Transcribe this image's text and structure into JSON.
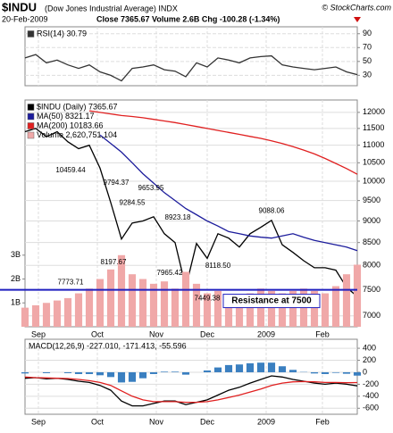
{
  "header": {
    "symbol": "$INDU",
    "name": "(Dow Jones Industrial Average) INDX",
    "date": "20-Feb-2009",
    "quote": "Close 7365.67 Volume 2.6B Chg -100.28 (-1.34%)",
    "credit": "© StockCharts.com"
  },
  "chart_data": [
    {
      "type": "line",
      "show_xtick_labels": false,
      "x": [
        0,
        4,
        8,
        12,
        16,
        20,
        24,
        28,
        32,
        36,
        40,
        44,
        48,
        52,
        56,
        60,
        64,
        68,
        72,
        76,
        80,
        84,
        88,
        92,
        96,
        100,
        104,
        108,
        112,
        116,
        120,
        124
      ],
      "xlim": [
        0,
        124
      ],
      "xticks": [
        {
          "value": 5,
          "label": "Sep"
        },
        {
          "value": 27,
          "label": "Oct"
        },
        {
          "value": 49,
          "label": "Nov"
        },
        {
          "value": 68,
          "label": "Dec"
        },
        {
          "value": 90,
          "label": "2009"
        },
        {
          "value": 111,
          "label": "Feb"
        }
      ],
      "ylim": [
        15,
        100
      ],
      "yticks": [
        30,
        50,
        70,
        90
      ],
      "grid": true,
      "series": [
        {
          "name": "RSI(14) 30.79",
          "color": "#333333",
          "values": [
            55,
            60,
            48,
            52,
            45,
            40,
            45,
            35,
            30,
            22,
            40,
            42,
            45,
            38,
            36,
            28,
            48,
            42,
            55,
            52,
            48,
            55,
            57,
            58,
            45,
            42,
            40,
            38,
            40,
            42,
            35,
            31
          ]
        }
      ]
    },
    {
      "type": "line",
      "log": true,
      "show_xtick_labels": true,
      "x": [
        0,
        4,
        8,
        12,
        16,
        20,
        24,
        28,
        32,
        36,
        40,
        44,
        48,
        52,
        56,
        60,
        64,
        68,
        72,
        76,
        80,
        84,
        88,
        92,
        96,
        100,
        104,
        108,
        112,
        116,
        120,
        124
      ],
      "xlim": [
        0,
        124
      ],
      "xticks": [
        {
          "value": 5,
          "label": "Sep"
        },
        {
          "value": 27,
          "label": "Oct"
        },
        {
          "value": 49,
          "label": "Nov"
        },
        {
          "value": 68,
          "label": "Dec"
        },
        {
          "value": 90,
          "label": "2009"
        },
        {
          "value": 111,
          "label": "Feb"
        }
      ],
      "ylim": [
        6800,
        12400
      ],
      "yticks": [
        7000,
        7500,
        8000,
        8500,
        9000,
        9500,
        10000,
        10500,
        11000,
        11500,
        12000
      ],
      "grid": true,
      "y2lim": [
        0,
        9.5
      ],
      "y2ticks": [
        {
          "value": 1,
          "label": "1B"
        },
        {
          "value": 2,
          "label": "2B"
        },
        {
          "value": 3,
          "label": "3B"
        }
      ],
      "series": [
        {
          "name": "$INDU (Daily) 7365.67",
          "color": "#000000",
          "values": [
            11400,
            11500,
            11250,
            11400,
            11100,
            10900,
            11000,
            10350,
            9450,
            8580,
            8950,
            9000,
            9100,
            8700,
            8500,
            7550,
            8480,
            8150,
            8700,
            8600,
            8400,
            8700,
            8850,
            9015,
            8450,
            8280,
            8100,
            7950,
            7950,
            7900,
            7550,
            7366
          ]
        },
        {
          "name": "MA(50) 8321.17",
          "color": "#1c1c9c",
          "values": [
            null,
            null,
            null,
            null,
            null,
            null,
            null,
            11300,
            11050,
            10800,
            10500,
            10200,
            9950,
            9700,
            9500,
            9300,
            9150,
            9000,
            8880,
            8750,
            8700,
            8650,
            8620,
            8600,
            8650,
            8700,
            8620,
            8550,
            8500,
            8450,
            8400,
            8321
          ]
        },
        {
          "name": "MA(200) 10183.66",
          "color": "#e02020",
          "values": [
            null,
            null,
            null,
            null,
            null,
            null,
            12050,
            12000,
            11950,
            11900,
            11870,
            11830,
            11780,
            11730,
            11680,
            11620,
            11560,
            11500,
            11440,
            11380,
            11320,
            11260,
            11200,
            11130,
            11050,
            10960,
            10860,
            10750,
            10620,
            10480,
            10340,
            10184
          ]
        },
        {
          "name": "Volume 2,620,751,104",
          "color": "#f0a8a8",
          "type": "bar",
          "axis": "y2",
          "values": [
            0.8,
            0.9,
            1.0,
            1.1,
            1.2,
            1.4,
            1.6,
            2.0,
            2.4,
            3.0,
            2.2,
            2.0,
            1.8,
            1.9,
            1.6,
            2.3,
            1.8,
            1.4,
            1.5,
            1.3,
            1.1,
            1.4,
            1.6,
            1.5,
            1.4,
            1.5,
            1.6,
            1.5,
            1.4,
            1.7,
            2.2,
            2.6
          ]
        }
      ],
      "hlines": [
        {
          "value": 7500,
          "label": "Resistance at 7500",
          "color": "#1f1fbf"
        }
      ],
      "annotations": [
        {
          "x": 17,
          "value": 10459.44,
          "label": "10459.44"
        },
        {
          "x": 34,
          "value": 9794.37,
          "label": "9794.37"
        },
        {
          "x": 40,
          "value": 9284.55,
          "label": "9284.55"
        },
        {
          "x": 47,
          "value": 9653.95,
          "label": "9653.95"
        },
        {
          "x": 57,
          "value": 8923.18,
          "label": "8923.18"
        },
        {
          "x": 33,
          "value": 8197.67,
          "label": "8197.67"
        },
        {
          "x": 17,
          "value": 7773.71,
          "label": "7773.71"
        },
        {
          "x": 54,
          "value": 7965.42,
          "label": "7965.42"
        },
        {
          "x": 72,
          "value": 8118.5,
          "label": "8118.50"
        },
        {
          "x": 68,
          "value": 7449.38,
          "label": "7449.38"
        },
        {
          "x": 92,
          "value": 9088.06,
          "label": "9088.06"
        }
      ]
    },
    {
      "type": "line",
      "show_xtick_labels": true,
      "title": "MACD(12,26,9) -227.010, -171.413, -55.596",
      "x": [
        0,
        4,
        8,
        12,
        16,
        20,
        24,
        28,
        32,
        36,
        40,
        44,
        48,
        52,
        56,
        60,
        64,
        68,
        72,
        76,
        80,
        84,
        88,
        92,
        96,
        100,
        104,
        108,
        112,
        116,
        120,
        124
      ],
      "xlim": [
        0,
        124
      ],
      "xticks": [
        {
          "value": 5,
          "label": "Sep"
        },
        {
          "value": 27,
          "label": "Oct"
        },
        {
          "value": 49,
          "label": "Nov"
        },
        {
          "value": 68,
          "label": "Dec"
        },
        {
          "value": 90,
          "label": "2009"
        },
        {
          "value": 111,
          "label": "Feb"
        }
      ],
      "ylim": [
        -700,
        550
      ],
      "yticks": [
        -600,
        -400,
        -200,
        0,
        200,
        400
      ],
      "grid": true,
      "series": [
        {
          "color": "#3a7fc0",
          "type": "bar",
          "values": [
            -20,
            0,
            -15,
            0,
            -15,
            -30,
            -30,
            -50,
            -80,
            -170,
            -160,
            -100,
            -30,
            10,
            10,
            -40,
            0,
            30,
            80,
            120,
            130,
            150,
            160,
            160,
            100,
            40,
            5,
            -20,
            -30,
            -10,
            -25,
            -56
          ]
        },
        {
          "color": "#000000",
          "values": [
            -100,
            -90,
            -110,
            -100,
            -120,
            -150,
            -170,
            -220,
            -300,
            -480,
            -560,
            -560,
            -520,
            -480,
            -480,
            -540,
            -500,
            -460,
            -380,
            -300,
            -250,
            -180,
            -120,
            -60,
            -80,
            -120,
            -150,
            -180,
            -200,
            -180,
            -200,
            -227
          ]
        },
        {
          "color": "#e02020",
          "values": [
            -80,
            -90,
            -95,
            -100,
            -105,
            -120,
            -140,
            -170,
            -220,
            -310,
            -400,
            -460,
            -490,
            -490,
            -490,
            -500,
            -500,
            -490,
            -460,
            -420,
            -380,
            -330,
            -280,
            -220,
            -180,
            -160,
            -155,
            -160,
            -170,
            -170,
            -175,
            -171
          ]
        }
      ]
    }
  ]
}
